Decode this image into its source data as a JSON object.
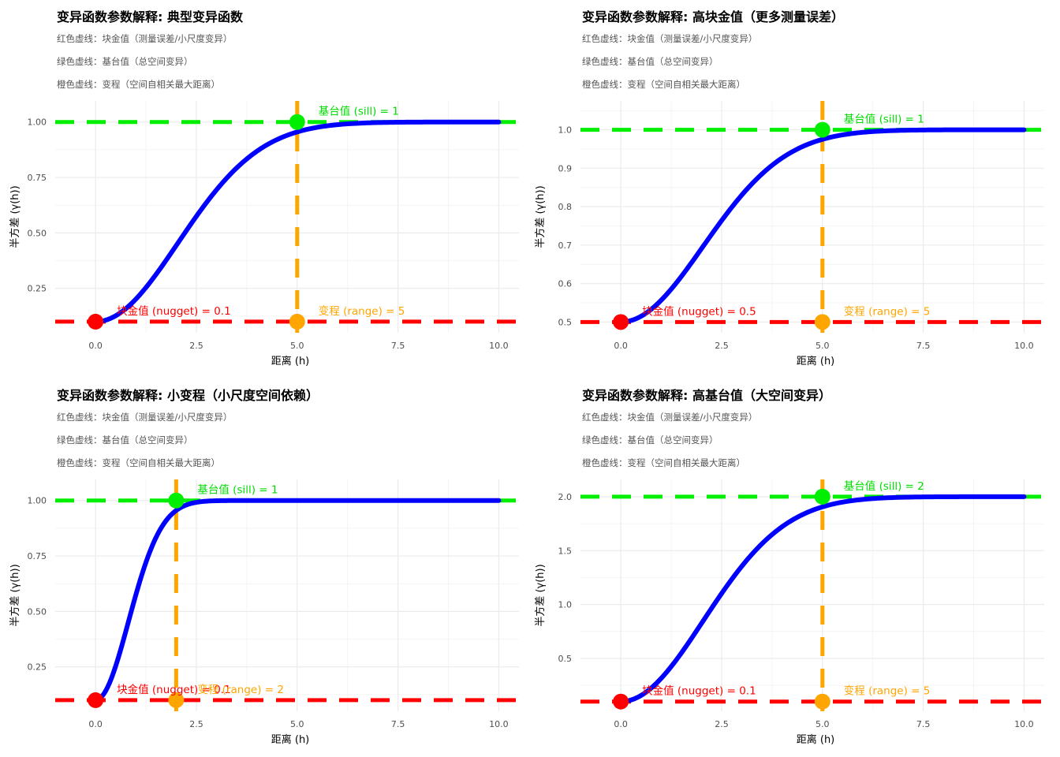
{
  "chart_data": [
    {
      "type": "line",
      "title": "变异函数参数解释: 典型变异函数",
      "subtitles": [
        "红色虚线：块金值（测量误差/小尺度变异）",
        "绿色虚线：基台值（总空间变异）",
        "橙色虚线：变程（空间自相关最大距离）"
      ],
      "xlabel": "距离 (h)",
      "ylabel": "半方差 (γ(h))",
      "nugget": 0.1,
      "sill": 1,
      "range": 5,
      "xlim": [
        -1,
        10.5
      ],
      "ylim": [
        0.05,
        1.095
      ],
      "xticks": [
        0,
        2.5,
        5,
        7.5,
        10
      ],
      "xtick_labels": [
        "0.0",
        "2.5",
        "5.0",
        "7.5",
        "10.0"
      ],
      "yticks": [
        0.25,
        0.5,
        0.75,
        1.0
      ],
      "ytick_labels": [
        "0.25",
        "0.50",
        "0.75",
        "1.00"
      ],
      "ann_nugget": "块金值 (nugget) = 0.1",
      "ann_sill": "基台值 (sill) = 1",
      "ann_range": "变程 (range) = 5"
    },
    {
      "type": "line",
      "title": "变异函数参数解释: 高块金值（更多测量误差）",
      "subtitles": [
        "红色虚线：块金值（测量误差/小尺度变异）",
        "绿色虚线：基台值（总空间变异）",
        "橙色虚线：变程（空间自相关最大距离）"
      ],
      "xlabel": "距离 (h)",
      "ylabel": "半方差 (γ(h))",
      "nugget": 0.5,
      "sill": 1,
      "range": 5,
      "xlim": [
        -1,
        10.5
      ],
      "ylim": [
        0.472,
        1.075
      ],
      "xticks": [
        0,
        2.5,
        5,
        7.5,
        10
      ],
      "xtick_labels": [
        "0.0",
        "2.5",
        "5.0",
        "7.5",
        "10.0"
      ],
      "yticks": [
        0.5,
        0.6,
        0.7,
        0.8,
        0.9,
        1.0
      ],
      "ytick_labels": [
        "0.5",
        "0.6",
        "0.7",
        "0.8",
        "0.9",
        "1.0"
      ],
      "ann_nugget": "块金值 (nugget) = 0.5",
      "ann_sill": "基台值 (sill) = 1",
      "ann_range": "变程 (range) = 5"
    },
    {
      "type": "line",
      "title": "变异函数参数解释: 小变程（小尺度空间依赖）",
      "subtitles": [
        "红色虚线：块金值（测量误差/小尺度变异）",
        "绿色虚线：基台值（总空间变异）",
        "橙色虚线：变程（空间自相关最大距离）"
      ],
      "xlabel": "距离 (h)",
      "ylabel": "半方差 (γ(h))",
      "nugget": 0.1,
      "sill": 1,
      "range": 2,
      "xlim": [
        -1,
        10.5
      ],
      "ylim": [
        0.05,
        1.095
      ],
      "xticks": [
        0,
        2.5,
        5,
        7.5,
        10
      ],
      "xtick_labels": [
        "0.0",
        "2.5",
        "5.0",
        "7.5",
        "10.0"
      ],
      "yticks": [
        0.25,
        0.5,
        0.75,
        1.0
      ],
      "ytick_labels": [
        "0.25",
        "0.50",
        "0.75",
        "1.00"
      ],
      "ann_nugget": "块金值 (nugget) = 0.1",
      "ann_sill": "基台值 (sill) = 1",
      "ann_range": "变程 (range) = 2"
    },
    {
      "type": "line",
      "title": "变异函数参数解释: 高基台值（大空间变异）",
      "subtitles": [
        "红色虚线：块金值（测量误差/小尺度变异）",
        "绿色虚线：基台值（总空间变异）",
        "橙色虚线：变程（空间自相关最大距离）"
      ],
      "xlabel": "距离 (h)",
      "ylabel": "半方差 (γ(h))",
      "nugget": 0.1,
      "sill": 2,
      "range": 5,
      "xlim": [
        -1,
        10.5
      ],
      "ylim": [
        0.01,
        2.16
      ],
      "xticks": [
        0,
        2.5,
        5,
        7.5,
        10
      ],
      "xtick_labels": [
        "0.0",
        "2.5",
        "5.0",
        "7.5",
        "10.0"
      ],
      "yticks": [
        0.5,
        1.0,
        1.5,
        2.0
      ],
      "ytick_labels": [
        "0.5",
        "1.0",
        "1.5",
        "2.0"
      ],
      "ann_nugget": "块金值 (nugget) = 0.1",
      "ann_sill": "基台值 (sill) = 2",
      "ann_range": "变程 (range) = 5"
    }
  ],
  "colors": {
    "curve": "#0000ff",
    "nugget": "#ff0000",
    "sill": "#00ee00",
    "range": "#ffa500",
    "sill_text": "#00dd00",
    "grid_major": "#ebebeb",
    "grid_minor": "#f4f4f4",
    "axis_text": "#4d4d4d"
  }
}
